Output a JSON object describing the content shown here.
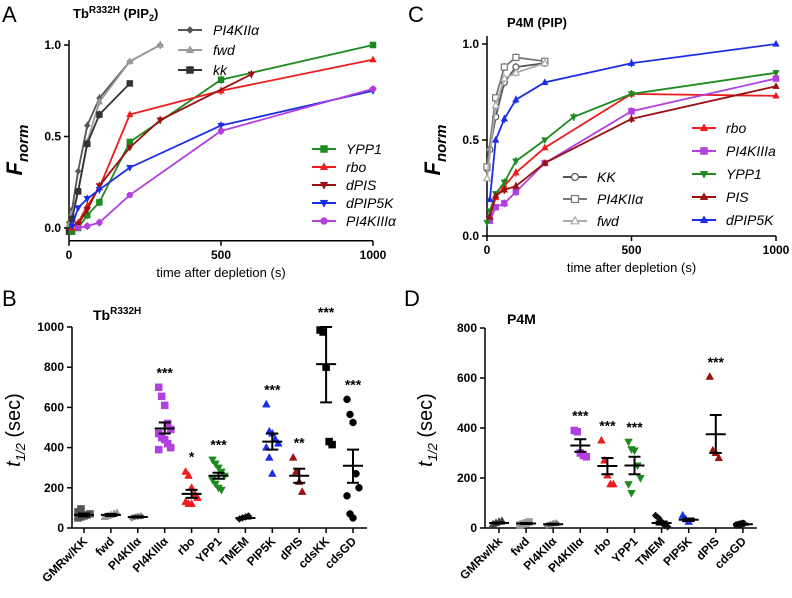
{
  "chart_data": [
    {
      "panel": "A",
      "type": "line",
      "title": {
        "base": "Tb",
        "sup": "R332H",
        "rest": " (PIP",
        "sub": "2",
        "end": ")"
      },
      "xlabel": "time after depletion (s)",
      "ylabel": {
        "base": "F",
        "sub": "norm"
      },
      "xlim": [
        0,
        1000
      ],
      "ylim": [
        -0.07,
        1.0
      ],
      "xticks": [
        "0",
        "500",
        "1000"
      ],
      "xtick_values": [
        0,
        500,
        1000
      ],
      "yticks": [
        "0.0",
        "0.5",
        "1.0"
      ],
      "ytick_values": [
        0,
        0.5,
        1.0
      ],
      "series": [
        {
          "name": "PI4KIIα",
          "color": "#555555",
          "marker": "diamond",
          "group": "top",
          "points": [
            [
              0,
              0.03
            ],
            [
              10,
              0.1
            ],
            [
              30,
              0.31
            ],
            [
              60,
              0.56
            ],
            [
              100,
              0.71
            ],
            [
              200,
              0.91
            ],
            [
              300,
              1.0
            ]
          ]
        },
        {
          "name": "fwd",
          "color": "#999999",
          "marker": "triangle",
          "group": "top",
          "points": [
            [
              0,
              0.02
            ],
            [
              10,
              0.08
            ],
            [
              30,
              0.2
            ],
            [
              60,
              0.47
            ],
            [
              100,
              0.69
            ],
            [
              200,
              0.91
            ],
            [
              300,
              1.0
            ]
          ]
        },
        {
          "name": "kk",
          "color": "#333333",
          "marker": "square",
          "group": "top",
          "points": [
            [
              0,
              -0.02
            ],
            [
              10,
              0.05
            ],
            [
              30,
              0.2
            ],
            [
              60,
              0.46
            ],
            [
              100,
              0.62
            ],
            [
              200,
              0.79
            ]
          ]
        },
        {
          "name": "YPP1",
          "color": "#1f8a1f",
          "marker": "square",
          "group": "right",
          "points": [
            [
              10,
              -0.02
            ],
            [
              30,
              0.0
            ],
            [
              60,
              0.07
            ],
            [
              100,
              0.14
            ],
            [
              200,
              0.47
            ],
            [
              500,
              0.81
            ],
            [
              1000,
              1.0
            ]
          ]
        },
        {
          "name": "rbo",
          "color": "#ee1c1c",
          "marker": "triangle",
          "group": "right",
          "points": [
            [
              10,
              0.0
            ],
            [
              30,
              0.03
            ],
            [
              60,
              0.12
            ],
            [
              100,
              0.22
            ],
            [
              200,
              0.62
            ],
            [
              500,
              0.75
            ],
            [
              1000,
              0.92
            ]
          ]
        },
        {
          "name": "dPIS",
          "color": "#9b1111",
          "marker": "tridown",
          "group": "right",
          "points": [
            [
              30,
              0.02
            ],
            [
              60,
              0.1
            ],
            [
              100,
              0.23
            ],
            [
              200,
              0.44
            ],
            [
              300,
              0.59
            ],
            [
              600,
              0.84
            ]
          ]
        },
        {
          "name": "dPIP5K",
          "color": "#1a2ee8",
          "marker": "tridown",
          "group": "right",
          "points": [
            [
              10,
              0.01
            ],
            [
              30,
              0.11
            ],
            [
              60,
              0.16
            ],
            [
              100,
              0.21
            ],
            [
              200,
              0.33
            ],
            [
              500,
              0.56
            ],
            [
              1000,
              0.75
            ]
          ]
        },
        {
          "name": "PI4KIIIα",
          "color": "#b23fe0",
          "marker": "circle",
          "group": "right",
          "points": [
            [
              30,
              0.0
            ],
            [
              60,
              0.01
            ],
            [
              100,
              0.03
            ],
            [
              200,
              0.18
            ],
            [
              500,
              0.53
            ],
            [
              1000,
              0.76
            ]
          ]
        }
      ]
    },
    {
      "panel": "C",
      "type": "line",
      "title": {
        "base": "P4M (PIP)"
      },
      "xlabel": "time after depletion (s)",
      "ylabel": {
        "base": "F",
        "sub": "norm"
      },
      "xlim": [
        0,
        1000
      ],
      "ylim": [
        0,
        1.05
      ],
      "xticks": [
        "0",
        "500",
        "1000"
      ],
      "xtick_values": [
        0,
        500,
        1000
      ],
      "yticks": [
        "0.0",
        "0.5",
        "1.0"
      ],
      "ytick_values": [
        0,
        0.5,
        1.0
      ],
      "series": [
        {
          "name": "KK",
          "color": "#555555",
          "marker": "circle-open",
          "group": "left",
          "points": [
            [
              0,
              0.35
            ],
            [
              10,
              0.45
            ],
            [
              30,
              0.62
            ],
            [
              60,
              0.8
            ],
            [
              100,
              0.88
            ],
            [
              200,
              0.9
            ]
          ]
        },
        {
          "name": "PI4KIIα",
          "color": "#777777",
          "marker": "square-open",
          "group": "left",
          "points": [
            [
              0,
              0.36
            ],
            [
              30,
              0.72
            ],
            [
              60,
              0.88
            ],
            [
              100,
              0.93
            ],
            [
              200,
              0.91
            ]
          ]
        },
        {
          "name": "fwd",
          "color": "#aaaaaa",
          "marker": "triangle-open",
          "group": "left",
          "points": [
            [
              0,
              0.3
            ],
            [
              30,
              0.68
            ],
            [
              60,
              0.82
            ],
            [
              100,
              0.85
            ],
            [
              200,
              0.9
            ]
          ]
        },
        {
          "name": "rbo",
          "color": "#ee1c1c",
          "marker": "triangle",
          "group": "right",
          "points": [
            [
              10,
              0.1
            ],
            [
              30,
              0.2
            ],
            [
              60,
              0.26
            ],
            [
              100,
              0.33
            ],
            [
              200,
              0.46
            ],
            [
              500,
              0.74
            ],
            [
              1000,
              0.73
            ]
          ]
        },
        {
          "name": "PI4KIIIa",
          "color": "#b23fe0",
          "marker": "square",
          "group": "right",
          "points": [
            [
              10,
              0.08
            ],
            [
              30,
              0.15
            ],
            [
              60,
              0.17
            ],
            [
              100,
              0.23
            ],
            [
              200,
              0.38
            ],
            [
              500,
              0.65
            ],
            [
              1000,
              0.82
            ]
          ]
        },
        {
          "name": "YPP1",
          "color": "#1f8a1f",
          "marker": "tridown",
          "group": "right",
          "points": [
            [
              0,
              0.07
            ],
            [
              10,
              0.13
            ],
            [
              30,
              0.22
            ],
            [
              60,
              0.28
            ],
            [
              100,
              0.39
            ],
            [
              200,
              0.5
            ],
            [
              300,
              0.62
            ],
            [
              500,
              0.74
            ],
            [
              1000,
              0.85
            ]
          ]
        },
        {
          "name": "PIS",
          "color": "#9b1111",
          "marker": "triangle",
          "group": "right",
          "points": [
            [
              10,
              0.1
            ],
            [
              30,
              0.21
            ],
            [
              60,
              0.24
            ],
            [
              100,
              0.26
            ],
            [
              200,
              0.38
            ],
            [
              500,
              0.61
            ],
            [
              1000,
              0.78
            ]
          ]
        },
        {
          "name": "dPIP5K",
          "color": "#1a2ee8",
          "marker": "triangle",
          "group": "right",
          "points": [
            [
              10,
              0.19
            ],
            [
              30,
              0.5
            ],
            [
              60,
              0.61
            ],
            [
              100,
              0.71
            ],
            [
              200,
              0.8
            ],
            [
              500,
              0.9
            ],
            [
              1000,
              1.0
            ]
          ]
        }
      ]
    },
    {
      "panel": "B",
      "type": "scatter",
      "title": {
        "base": "Tb",
        "sup": "R332H"
      },
      "ylabel": {
        "base": "t",
        "sub": "1/2",
        "rest": " (sec)"
      },
      "ylim": [
        0,
        1000
      ],
      "yticks": [
        "0",
        "200",
        "400",
        "600",
        "800",
        "1000"
      ],
      "ytick_values": [
        0,
        200,
        400,
        600,
        800,
        1000
      ],
      "groups": [
        {
          "name": "GMRw/KK",
          "color": "#555555",
          "marker": "square",
          "mean": 65,
          "sem": [
            58,
            72
          ],
          "points": [
            50,
            55,
            60,
            65,
            70,
            80,
            95
          ],
          "sig": ""
        },
        {
          "name": "fwd",
          "color": "#999999",
          "marker": "triangle",
          "mean": 65,
          "sem": [
            60,
            70
          ],
          "points": [
            55,
            60,
            65,
            70,
            75
          ],
          "sig": ""
        },
        {
          "name": "PI4KIIα",
          "color": "#888888",
          "marker": "diamond",
          "mean": 55,
          "sem": [
            52,
            58
          ],
          "points": [
            50,
            55,
            58,
            60
          ],
          "sig": ""
        },
        {
          "name": "PI4KIIIα",
          "color": "#b23fe0",
          "marker": "square",
          "mean": 495,
          "sem": [
            470,
            525
          ],
          "points": [
            700,
            655,
            610,
            520,
            490,
            470,
            450,
            440,
            420,
            400,
            390
          ],
          "sig": "***"
        },
        {
          "name": "rbo",
          "color": "#ee1c1c",
          "marker": "triangle",
          "mean": 170,
          "sem": [
            150,
            190
          ],
          "points": [
            280,
            260,
            200,
            170,
            150,
            130,
            120,
            120
          ],
          "sig": "*"
        },
        {
          "name": "YPP1",
          "color": "#1f8a1f",
          "marker": "tridown",
          "mean": 260,
          "sem": [
            245,
            275
          ],
          "points": [
            340,
            320,
            300,
            280,
            260,
            240,
            220,
            200,
            190
          ],
          "sig": "***"
        },
        {
          "name": "TMEM",
          "color": "#111111",
          "marker": "diamond",
          "mean": 50,
          "sem": [
            47,
            53
          ],
          "points": [
            45,
            50,
            55,
            60
          ],
          "sig": ""
        },
        {
          "name": "PIP5K",
          "color": "#1a2ee8",
          "marker": "triangle",
          "mean": 430,
          "sem": [
            390,
            470
          ],
          "points": [
            615,
            480,
            470,
            440,
            420,
            400,
            350,
            270
          ],
          "sig": "***"
        },
        {
          "name": "dPIS",
          "color": "#9b1111",
          "marker": "triangle",
          "mean": 260,
          "sem": [
            225,
            295
          ],
          "points": [
            350,
            280,
            230,
            180
          ],
          "sig": "**"
        },
        {
          "name": "cdsKK",
          "color": "#000000",
          "marker": "square",
          "mean": 815,
          "sem": [
            625,
            1000
          ],
          "points": [
            985,
            975,
            800,
            430,
            415
          ],
          "sig": "***"
        },
        {
          "name": "cdsGD",
          "color": "#000000",
          "marker": "circle",
          "mean": 310,
          "sem": [
            225,
            390
          ],
          "points": [
            640,
            565,
            525,
            270,
            200,
            160,
            70,
            50
          ],
          "sig": "***"
        }
      ]
    },
    {
      "panel": "D",
      "type": "scatter",
      "title": {
        "base": "P4M"
      },
      "ylabel": {
        "base": "t",
        "sub": "1/2",
        "rest": " (sec)"
      },
      "ylim": [
        0,
        800
      ],
      "yticks": [
        "0",
        "200",
        "400",
        "600",
        "800"
      ],
      "ytick_values": [
        0,
        200,
        400,
        600,
        800
      ],
      "groups": [
        {
          "name": "GMRw/kk",
          "color": "#444444",
          "marker": "triangle",
          "mean": 20,
          "sem": [
            18,
            22
          ],
          "points": [
            15,
            20,
            25,
            28
          ],
          "sig": ""
        },
        {
          "name": "fwd",
          "color": "#999999",
          "marker": "square",
          "mean": 18,
          "sem": [
            16,
            20
          ],
          "points": [
            12,
            16,
            20,
            24
          ],
          "sig": ""
        },
        {
          "name": "PI4KIIα",
          "color": "#888888",
          "marker": "diamond",
          "mean": 15,
          "sem": [
            13,
            17
          ],
          "points": [
            10,
            14,
            18,
            20
          ],
          "sig": ""
        },
        {
          "name": "PI4KIIIα",
          "color": "#b23fe0",
          "marker": "square",
          "mean": 330,
          "sem": [
            305,
            355
          ],
          "points": [
            390,
            385,
            300,
            290,
            285
          ],
          "sig": "***"
        },
        {
          "name": "rbo",
          "color": "#ee1c1c",
          "marker": "triangle",
          "mean": 248,
          "sem": [
            215,
            280
          ],
          "points": [
            350,
            270,
            210,
            175,
            175
          ],
          "sig": "***"
        },
        {
          "name": "YPP1",
          "color": "#1f8a1f",
          "marker": "tridown",
          "mean": 250,
          "sem": [
            215,
            285
          ],
          "points": [
            345,
            315,
            310,
            250,
            200,
            175,
            140
          ],
          "sig": "***"
        },
        {
          "name": "TMEM",
          "color": "#111111",
          "marker": "diamond",
          "mean": 20,
          "sem": [
            14,
            26
          ],
          "points": [
            50,
            40,
            25,
            10,
            5
          ],
          "sig": ""
        },
        {
          "name": "PIP5K",
          "color": "#1a2ee8",
          "marker": "triangle",
          "mean": 33,
          "sem": [
            28,
            38
          ],
          "points": [
            50,
            35,
            25
          ],
          "sig": ""
        },
        {
          "name": "dPIS",
          "color": "#9b1111",
          "marker": "triangle",
          "mean": 375,
          "sem": [
            300,
            452
          ],
          "points": [
            605,
            310,
            300,
            280
          ],
          "sig": "***"
        },
        {
          "name": "cdsGD",
          "color": "#111111",
          "marker": "circle",
          "mean": 15,
          "sem": [
            13,
            17
          ],
          "points": [
            12,
            15,
            18
          ],
          "sig": ""
        }
      ]
    }
  ]
}
